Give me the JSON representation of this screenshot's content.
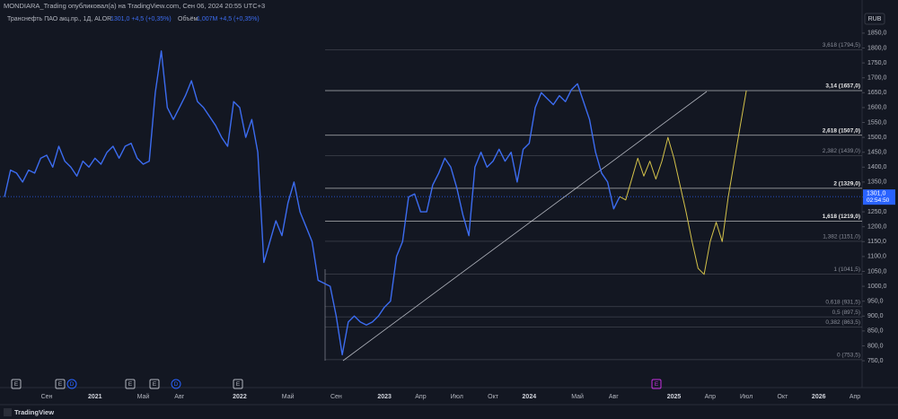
{
  "header": {
    "publisher": "MONDIARA_Trading опубликовал(а) на TradingView.com, Сен 06, 2024 20:55 UTC+3",
    "quote": "1301,0 +4,5 (+0,35%)",
    "volume_label": "Объём",
    "volume": "1,007M +4,5 (+0,35%)",
    "currency": "RUB",
    "brand": "TradingView"
  },
  "chart_data": {
    "type": "line",
    "categories": [
      null,
      null,
      null,
      null,
      null,
      null,
      null,
      "Сен",
      null,
      null,
      null,
      null,
      null,
      null,
      null,
      "2021",
      null,
      null,
      null,
      null,
      null,
      null,
      null,
      "Май",
      null,
      null,
      null,
      null,
      null,
      "Авг",
      null,
      null,
      null,
      null,
      null,
      null,
      null,
      null,
      null,
      "2022",
      null,
      null,
      null,
      null,
      null,
      null,
      null,
      "Май",
      null,
      null,
      null,
      null,
      null,
      null,
      null,
      "Сен",
      null,
      null,
      null,
      null,
      null,
      null,
      null,
      "2023",
      null,
      null,
      null,
      null,
      null,
      "Апр",
      null,
      null,
      null,
      null,
      null,
      "Июл",
      null,
      null,
      null,
      null,
      null,
      "Окт",
      null,
      null,
      null,
      null,
      null,
      "2024",
      null,
      null,
      null,
      null,
      null,
      null,
      null,
      "Май",
      null,
      null,
      null,
      null,
      null,
      "Авг",
      null,
      null,
      null,
      null,
      null,
      null,
      null,
      null,
      null,
      "2025",
      null,
      null,
      null,
      null,
      null,
      "Апр",
      null,
      null,
      null,
      null,
      null,
      "Июл",
      null,
      null,
      null,
      null,
      null,
      "Окт",
      null,
      null,
      null,
      null,
      null,
      "2026",
      null,
      null,
      null,
      null,
      null,
      "Апр"
    ],
    "series": [
      {
        "name": "Транснефть ПАО акц.пр., 1Д, ALOR",
        "color": "#3c6cf0",
        "values": [
          1300,
          1390,
          1380,
          1350,
          1390,
          1380,
          1430,
          1440,
          1400,
          1470,
          1420,
          1400,
          1370,
          1420,
          1400,
          1430,
          1410,
          1450,
          1470,
          1430,
          1470,
          1480,
          1430,
          1410,
          1420,
          1650,
          1790,
          1600,
          1560,
          1600,
          1640,
          1690,
          1620,
          1600,
          1570,
          1540,
          1500,
          1470,
          1620,
          1600,
          1500,
          1560,
          1450,
          1080,
          1150,
          1220,
          1170,
          1280,
          1350,
          1250,
          1200,
          1150,
          1020,
          1010,
          1000,
          900,
          770,
          880,
          900,
          880,
          870,
          880,
          900,
          930,
          950,
          1100,
          1150,
          1300,
          1310,
          1250,
          1250,
          1340,
          1380,
          1430,
          1400,
          1330,
          1240,
          1170,
          1400,
          1450,
          1400,
          1420,
          1460,
          1420,
          1450,
          1350,
          1460,
          1480,
          1600,
          1650,
          1630,
          1610,
          1640,
          1620,
          1660,
          1680,
          1620,
          1560,
          1450,
          1380,
          1350,
          1260,
          1301,
          null,
          null,
          null,
          null,
          null,
          null,
          null,
          null,
          null,
          null,
          null,
          null,
          null,
          null,
          null,
          null,
          null,
          null,
          null,
          null,
          null,
          null,
          null,
          null,
          null,
          null,
          null,
          null,
          null,
          null,
          null,
          null,
          null,
          null,
          null,
          null,
          null,
          null,
          null
        ]
      },
      {
        "color": "#d4c24a",
        "values": [
          null,
          null,
          null,
          null,
          null,
          null,
          null,
          null,
          null,
          null,
          null,
          null,
          null,
          null,
          null,
          null,
          null,
          null,
          null,
          null,
          null,
          null,
          null,
          null,
          null,
          null,
          null,
          null,
          null,
          null,
          null,
          null,
          null,
          null,
          null,
          null,
          null,
          null,
          null,
          null,
          null,
          null,
          null,
          null,
          null,
          null,
          null,
          null,
          null,
          null,
          null,
          null,
          null,
          null,
          null,
          null,
          null,
          null,
          null,
          null,
          null,
          null,
          null,
          null,
          null,
          null,
          null,
          null,
          null,
          null,
          null,
          null,
          null,
          null,
          null,
          null,
          null,
          null,
          null,
          null,
          null,
          null,
          null,
          null,
          null,
          null,
          null,
          null,
          null,
          null,
          null,
          null,
          null,
          null,
          null,
          null,
          null,
          null,
          null,
          null,
          null,
          null,
          1301,
          1290,
          1360,
          1430,
          1370,
          1420,
          1360,
          1420,
          1500,
          1430,
          1340,
          1250,
          1150,
          1060,
          1040,
          1150,
          1215,
          1150,
          1300,
          1420,
          1540,
          1657,
          null,
          null,
          null,
          null,
          null,
          null,
          null,
          null,
          null,
          null,
          null,
          null,
          null,
          null,
          null,
          null,
          null,
          null
        ]
      }
    ],
    "ylim": [
      696,
      1919
    ],
    "yticks": [
      {
        "value": 750,
        "label": "750,0"
      },
      {
        "value": 800,
        "label": "800,0"
      },
      {
        "value": 850,
        "label": "850,0"
      },
      {
        "value": 900,
        "label": "900,0"
      },
      {
        "value": 950,
        "label": "950,0"
      },
      {
        "value": 1000,
        "label": "1000,0"
      },
      {
        "value": 1050,
        "label": "1050,0"
      },
      {
        "value": 1100,
        "label": "1100,0"
      },
      {
        "value": 1150,
        "label": "1150,0"
      },
      {
        "value": 1200,
        "label": "1200,0"
      },
      {
        "value": 1250,
        "label": "1250,0"
      },
      {
        "value": 1300,
        "label": "1300,0"
      },
      {
        "value": 1350,
        "label": "1350,0"
      },
      {
        "value": 1400,
        "label": "1400,0"
      },
      {
        "value": 1450,
        "label": "1450,0"
      },
      {
        "value": 1500,
        "label": "1500,0"
      },
      {
        "value": 1550,
        "label": "1550,0"
      },
      {
        "value": 1600,
        "label": "1600,0"
      },
      {
        "value": 1650,
        "label": "1650,0"
      },
      {
        "value": 1700,
        "label": "1700,0"
      },
      {
        "value": 1750,
        "label": "1750,0"
      },
      {
        "value": 1800,
        "label": "1800,0"
      },
      {
        "value": 1850,
        "label": "1850,0"
      }
    ],
    "levels": [
      {
        "value": 1794.5,
        "label": "3,618 (1794,5)",
        "color": "#8a8e99"
      },
      {
        "value": 1657,
        "label": "3,14 (1657,0)",
        "color": "#e8e8e8"
      },
      {
        "value": 1507,
        "label": "2,618 (1507,0)",
        "color": "#e8e8e8"
      },
      {
        "value": 1439,
        "label": "2,382 (1439,0)",
        "color": "#8a8e99"
      },
      {
        "value": 1329,
        "label": "2 (1329,0)",
        "color": "#e8e8e8"
      },
      {
        "value": 1219,
        "label": "1,618 (1219,0)",
        "color": "#e8e8e8"
      },
      {
        "value": 1151,
        "label": "1,382 (1151,0)",
        "color": "#8a8e99"
      },
      {
        "value": 1041.5,
        "label": "1 (1041,5)",
        "color": "#8a8e99"
      },
      {
        "value": 931.5,
        "label": "0,618 (931,5)",
        "color": "#8a8e99"
      },
      {
        "value": 897.5,
        "label": "0,5 (897,5)",
        "color": "#8a8e99"
      },
      {
        "value": 863.5,
        "label": "0,382 (863,5)",
        "color": "#8a8e99"
      },
      {
        "value": 753.5,
        "label": "0 (753,5)",
        "color": "#8a8e99"
      }
    ],
    "last_price": {
      "value": 1301,
      "label": "1301,0",
      "countdown": "02:54:50",
      "color": "#2962ff"
    },
    "events": [
      {
        "label": "E",
        "color": "#b2b5be"
      },
      {
        "label": "E",
        "color": "#b2b5be"
      },
      {
        "label": "D",
        "color": "#2962ff"
      },
      {
        "label": "E",
        "color": "#b2b5be"
      },
      {
        "label": "E",
        "color": "#b2b5be"
      },
      {
        "label": "D",
        "color": "#2962ff"
      },
      {
        "label": "E",
        "color": "#b2b5be"
      },
      {
        "label": "E",
        "color": "#c531e0"
      }
    ]
  }
}
